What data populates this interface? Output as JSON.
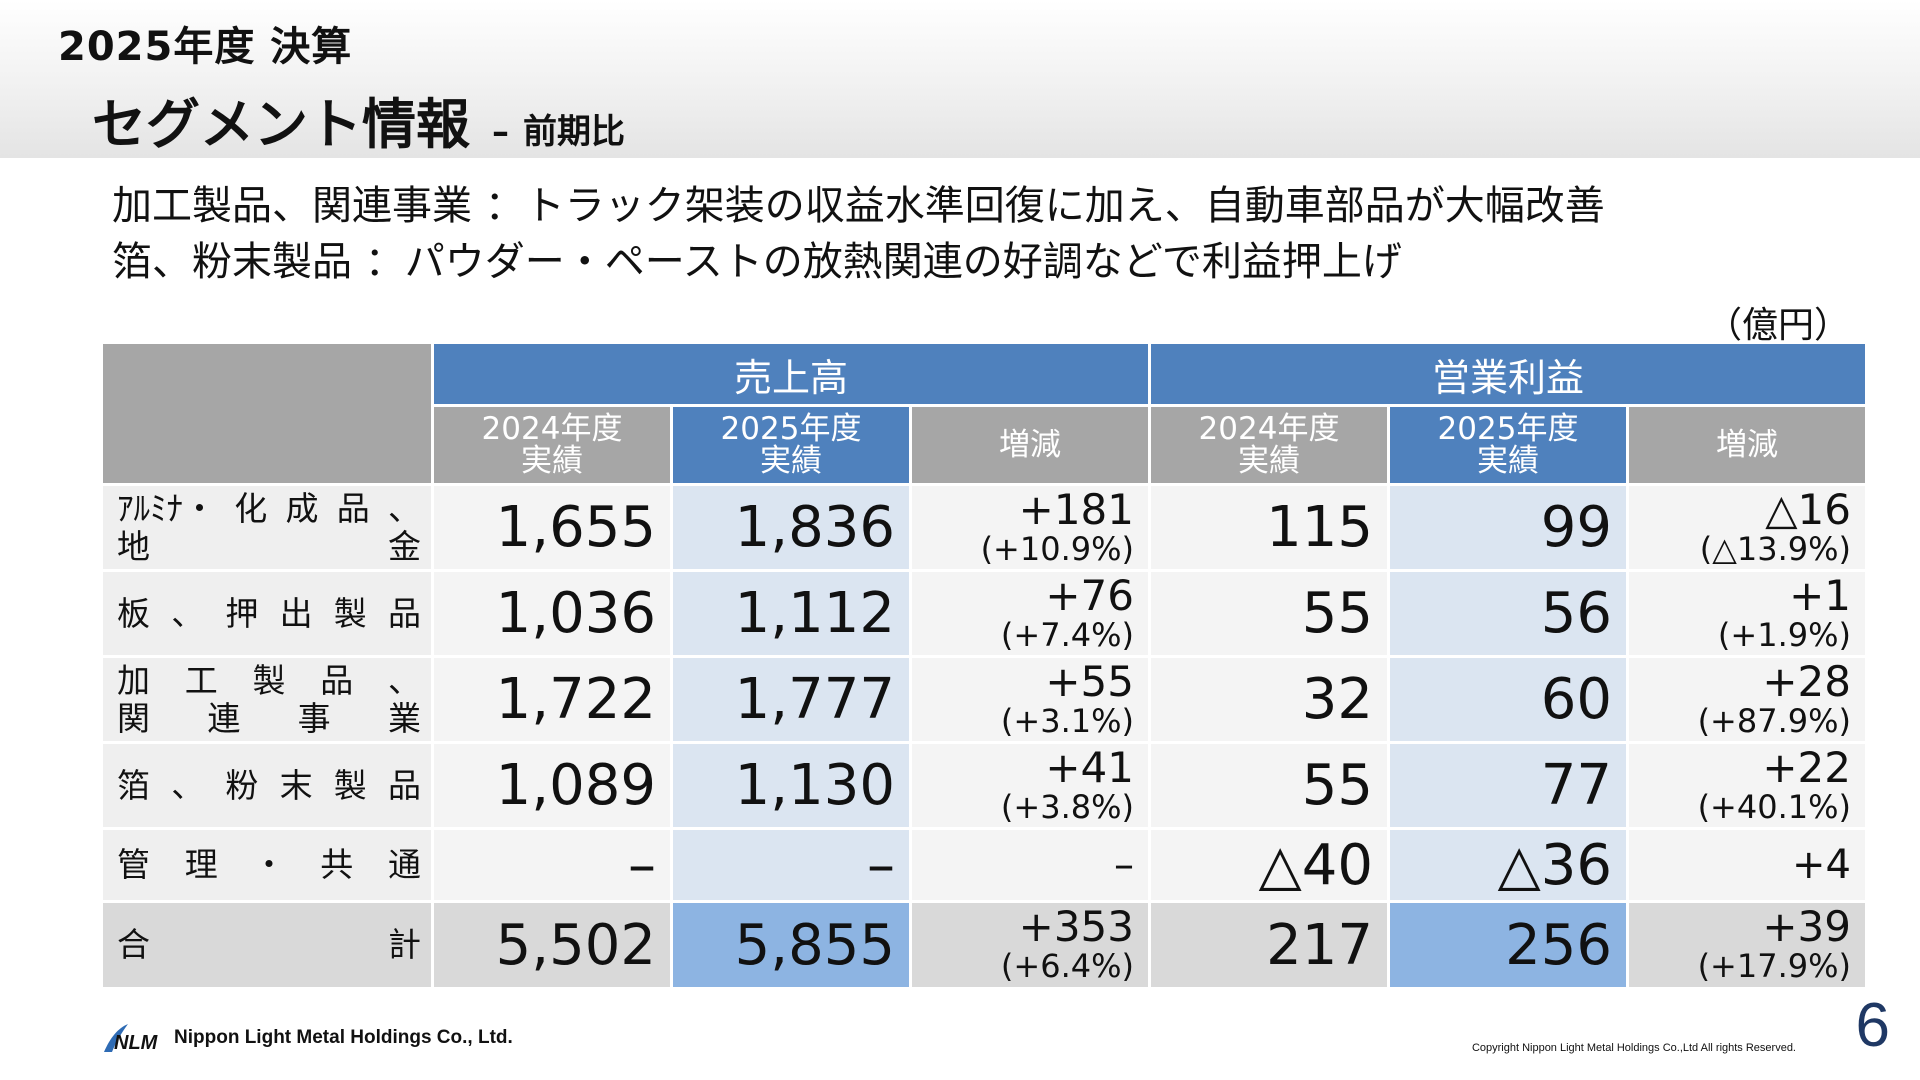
{
  "header": {
    "fiscal_title": "2025年度 決算",
    "page_title": "セグメント情報",
    "dash": "–",
    "page_subtitle": "前期比"
  },
  "summary": {
    "line1": "加工製品、関連事業 ：トラック架装の収益水準回復に加え、自動車部品が大幅改善",
    "line2": "箔、粉末製品 ：パウダー・ペーストの放熱関連の好調などで利益押上げ"
  },
  "unit_label": "（億円）",
  "table": {
    "sales_header": "売上高",
    "op_header": "営業利益",
    "sub_headers": {
      "prev_line1": "2024年度",
      "prev_line2": "実績",
      "cur_line1": "2025年度",
      "cur_line2": "実績",
      "diff": "増減"
    },
    "rows": [
      {
        "label_lines": [
          [
            "ｱﾙﾐﾅ・",
            "化",
            "成",
            "品",
            "、"
          ],
          [
            "地",
            "",
            "",
            "",
            "金"
          ]
        ],
        "sales_prev": "1,655",
        "sales_cur": "1,836",
        "sales_diff": "+181",
        "sales_diff_pct": "(+10.9%)",
        "op_prev": "115",
        "op_cur": "99",
        "op_diff": "△16",
        "op_diff_pct": "(△13.9%)"
      },
      {
        "label_lines": [
          [
            "板",
            "、",
            "押",
            "出",
            "製",
            "品"
          ]
        ],
        "sales_prev": "1,036",
        "sales_cur": "1,112",
        "sales_diff": "+76",
        "sales_diff_pct": "(+7.4%)",
        "op_prev": "55",
        "op_cur": "56",
        "op_diff": "+1",
        "op_diff_pct": "(+1.9%)"
      },
      {
        "label_lines": [
          [
            "加",
            "工",
            "製",
            "品",
            "、"
          ],
          [
            "関",
            "連",
            "事",
            "業"
          ]
        ],
        "sales_prev": "1,722",
        "sales_cur": "1,777",
        "sales_diff": "+55",
        "sales_diff_pct": "(+3.1%)",
        "op_prev": "32",
        "op_cur": "60",
        "op_diff": "+28",
        "op_diff_pct": "(+87.9%)"
      },
      {
        "label_lines": [
          [
            "箔",
            "、",
            "粉",
            "末",
            "製",
            "品"
          ]
        ],
        "sales_prev": "1,089",
        "sales_cur": "1,130",
        "sales_diff": "+41",
        "sales_diff_pct": "(+3.8%)",
        "op_prev": "55",
        "op_cur": "77",
        "op_diff": "+22",
        "op_diff_pct": "(+40.1%)"
      },
      {
        "label_lines": [
          [
            "管",
            "理",
            "・",
            "共",
            "通"
          ]
        ],
        "sales_prev": "–",
        "sales_cur": "–",
        "sales_diff": "–",
        "sales_diff_pct": "",
        "op_prev": "△40",
        "op_cur": "△36",
        "op_diff": "+4",
        "op_diff_pct": ""
      }
    ],
    "total": {
      "label_lines": [
        [
          "合",
          "計"
        ]
      ],
      "sales_prev": "5,502",
      "sales_cur": "5,855",
      "sales_diff": "+353",
      "sales_diff_pct": "(+6.4%)",
      "op_prev": "217",
      "op_cur": "256",
      "op_diff": "+39",
      "op_diff_pct": "(+17.9%)"
    }
  },
  "footer": {
    "logo_text": "Nippon Light Metal Holdings Co., Ltd.",
    "copyright": "Copyright Nippon Light Metal Holdings Co.,Ltd All rights Reserved.",
    "page_number": "6"
  }
}
